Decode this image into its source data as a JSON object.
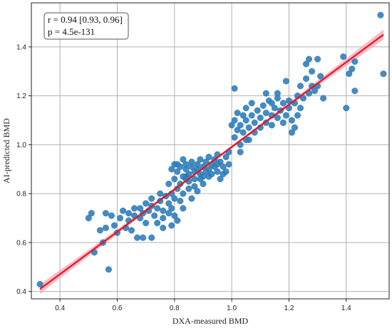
{
  "chart_data": {
    "type": "scatter",
    "xlabel": "DXA-measured BMD",
    "ylabel": "AI-predicted BMD",
    "xlim": [
      0.3,
      1.55
    ],
    "ylim": [
      0.37,
      1.58
    ],
    "x_ticks": [
      0.4,
      0.6,
      0.8,
      1.0,
      1.2,
      1.4
    ],
    "y_ticks": [
      0.4,
      0.6,
      0.8,
      1.0,
      1.2,
      1.4
    ],
    "x_tick_labels": [
      "0.4",
      "0.6",
      "0.8",
      "1.0",
      "1.2",
      "1.4"
    ],
    "y_tick_labels": [
      "0.4",
      "0.6",
      "0.8",
      "1.0",
      "1.2",
      "1.4"
    ],
    "grid": true,
    "annotation": {
      "line1": "r = 0.94 [0.93, 0.96]",
      "line2": "p = 4.5e-131",
      "placement": "top-left"
    },
    "regression": {
      "x_start": 0.33,
      "y_start": 0.41,
      "x_end": 1.53,
      "y_end": 1.45,
      "color": "#e8141c",
      "ci_color": "#f4a6b7"
    },
    "point_color": "#2b7bba",
    "points": [
      [
        0.33,
        0.43
      ],
      [
        0.52,
        0.56
      ],
      [
        0.55,
        0.6
      ],
      [
        0.57,
        0.49
      ],
      [
        0.56,
        0.66
      ],
      [
        0.54,
        0.65
      ],
      [
        0.5,
        0.7
      ],
      [
        0.51,
        0.72
      ],
      [
        0.56,
        0.72
      ],
      [
        0.58,
        0.71
      ],
      [
        0.59,
        0.67
      ],
      [
        0.6,
        0.64
      ],
      [
        0.61,
        0.7
      ],
      [
        0.62,
        0.73
      ],
      [
        0.63,
        0.66
      ],
      [
        0.64,
        0.69
      ],
      [
        0.65,
        0.65
      ],
      [
        0.66,
        0.71
      ],
      [
        0.67,
        0.62
      ],
      [
        0.68,
        0.7
      ],
      [
        0.68,
        0.74
      ],
      [
        0.69,
        0.72
      ],
      [
        0.7,
        0.76
      ],
      [
        0.71,
        0.73
      ],
      [
        0.7,
        0.68
      ],
      [
        0.72,
        0.75
      ],
      [
        0.73,
        0.71
      ],
      [
        0.74,
        0.74
      ],
      [
        0.75,
        0.77
      ],
      [
        0.76,
        0.73
      ],
      [
        0.76,
        0.7
      ],
      [
        0.77,
        0.79
      ],
      [
        0.78,
        0.72
      ],
      [
        0.78,
        0.76
      ],
      [
        0.79,
        0.74
      ],
      [
        0.8,
        0.71
      ],
      [
        0.8,
        0.78
      ],
      [
        0.81,
        0.82
      ],
      [
        0.81,
        0.69
      ],
      [
        0.82,
        0.77
      ],
      [
        0.83,
        0.74
      ],
      [
        0.72,
        0.62
      ],
      [
        0.69,
        0.62
      ],
      [
        0.74,
        0.68
      ],
      [
        0.76,
        0.66
      ],
      [
        0.79,
        0.67
      ],
      [
        0.66,
        0.74
      ],
      [
        0.64,
        0.72
      ],
      [
        0.72,
        0.78
      ],
      [
        0.75,
        0.8
      ],
      [
        0.78,
        0.84
      ],
      [
        0.79,
        0.8
      ],
      [
        0.8,
        0.86
      ],
      [
        0.81,
        0.89
      ],
      [
        0.82,
        0.84
      ],
      [
        0.83,
        0.8
      ],
      [
        0.83,
        0.87
      ],
      [
        0.84,
        0.9
      ],
      [
        0.84,
        0.92
      ],
      [
        0.85,
        0.85
      ],
      [
        0.85,
        0.88
      ],
      [
        0.86,
        0.91
      ],
      [
        0.86,
        0.93
      ],
      [
        0.87,
        0.89
      ],
      [
        0.87,
        0.86
      ],
      [
        0.88,
        0.92
      ],
      [
        0.88,
        0.9
      ],
      [
        0.89,
        0.94
      ],
      [
        0.89,
        0.88
      ],
      [
        0.9,
        0.91
      ],
      [
        0.9,
        0.87
      ],
      [
        0.91,
        0.93
      ],
      [
        0.91,
        0.89
      ],
      [
        0.92,
        0.95
      ],
      [
        0.92,
        0.9
      ],
      [
        0.93,
        0.92
      ],
      [
        0.93,
        0.88
      ],
      [
        0.94,
        0.94
      ],
      [
        0.94,
        0.91
      ],
      [
        0.95,
        0.96
      ],
      [
        0.95,
        0.89
      ],
      [
        0.96,
        0.93
      ],
      [
        0.97,
        0.91
      ],
      [
        0.98,
        0.95
      ],
      [
        0.99,
        0.92
      ],
      [
        0.99,
        0.97
      ],
      [
        0.98,
        0.89
      ],
      [
        0.96,
        0.86
      ],
      [
        0.9,
        0.84
      ],
      [
        0.88,
        0.81
      ],
      [
        0.86,
        0.78
      ],
      [
        0.85,
        0.82
      ],
      [
        0.84,
        0.86
      ],
      [
        0.82,
        0.91
      ],
      [
        0.83,
        0.94
      ],
      [
        0.84,
        0.87
      ],
      [
        0.81,
        0.92
      ],
      [
        0.79,
        0.9
      ],
      [
        0.8,
        0.92
      ],
      [
        0.87,
        0.83
      ],
      [
        0.89,
        0.86
      ],
      [
        0.92,
        0.87
      ],
      [
        0.95,
        0.92
      ],
      [
        0.97,
        0.88
      ],
      [
        1.0,
        1.08
      ],
      [
        1.01,
        1.03
      ],
      [
        1.01,
        1.1
      ],
      [
        1.02,
        1.06
      ],
      [
        1.02,
        1.13
      ],
      [
        1.03,
        1.0
      ],
      [
        1.03,
        1.08
      ],
      [
        1.04,
        1.12
      ],
      [
        1.04,
        1.05
      ],
      [
        1.05,
        1.1
      ],
      [
        1.05,
        1.15
      ],
      [
        1.06,
        1.07
      ],
      [
        1.06,
        1.02
      ],
      [
        1.07,
        1.12
      ],
      [
        1.07,
        1.17
      ],
      [
        1.08,
        1.09
      ],
      [
        1.08,
        1.05
      ],
      [
        1.09,
        1.14
      ],
      [
        1.1,
        1.11
      ],
      [
        1.1,
        1.07
      ],
      [
        1.11,
        1.16
      ],
      [
        1.12,
        1.13
      ],
      [
        1.12,
        1.09
      ],
      [
        1.13,
        1.18
      ],
      [
        1.14,
        1.12
      ],
      [
        1.14,
        1.08
      ],
      [
        1.15,
        1.15
      ],
      [
        1.16,
        1.11
      ],
      [
        1.16,
        1.19
      ],
      [
        1.17,
        1.14
      ],
      [
        1.18,
        1.17
      ],
      [
        1.18,
        1.09
      ],
      [
        1.19,
        1.12
      ],
      [
        1.2,
        1.18
      ],
      [
        1.2,
        1.15
      ],
      [
        1.21,
        1.1
      ],
      [
        1.22,
        1.17
      ],
      [
        1.22,
        1.07
      ],
      [
        1.23,
        1.2
      ],
      [
        1.24,
        1.15
      ],
      [
        1.01,
        1.23
      ],
      [
        1.03,
        0.97
      ],
      [
        1.05,
        1.02
      ],
      [
        1.12,
        1.21
      ],
      [
        1.14,
        1.17
      ],
      [
        1.16,
        1.21
      ],
      [
        1.19,
        1.26
      ],
      [
        1.21,
        1.05
      ],
      [
        1.23,
        1.12
      ],
      [
        1.25,
        1.19
      ],
      [
        1.26,
        1.33
      ],
      [
        1.27,
        1.35
      ],
      [
        1.28,
        1.3
      ],
      [
        1.29,
        1.22
      ],
      [
        1.3,
        1.24
      ],
      [
        1.31,
        1.28
      ],
      [
        1.28,
        1.24
      ],
      [
        1.26,
        1.27
      ],
      [
        1.3,
        1.35
      ],
      [
        1.32,
        1.19
      ],
      [
        1.39,
        1.36
      ],
      [
        1.4,
        1.15
      ],
      [
        1.41,
        1.29
      ],
      [
        1.43,
        1.22
      ],
      [
        1.43,
        1.34
      ],
      [
        1.52,
        1.53
      ],
      [
        1.53,
        1.29
      ],
      [
        1.42,
        1.31
      ],
      [
        1.27,
        1.21
      ],
      [
        1.24,
        1.24
      ]
    ]
  }
}
